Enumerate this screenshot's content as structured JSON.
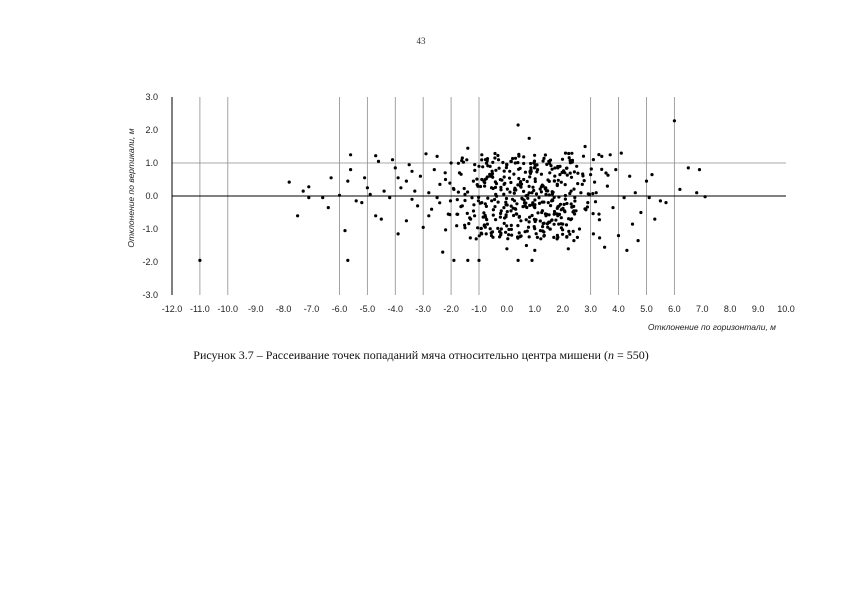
{
  "page": {
    "number": "43"
  },
  "caption": {
    "prefix": "Рисунок 3.7 – Рассеивание точек попаданий мяча относительно центра мишени (",
    "n_symbol": "n",
    "suffix": " = 550)"
  },
  "chart_data": {
    "type": "scatter",
    "xlabel": "Отклонение по горизонтали, м",
    "ylabel": "Отклонение по вертикали, м",
    "xlim": [
      -12.0,
      10.0
    ],
    "ylim": [
      -3.0,
      3.0
    ],
    "x_ticks": [
      "-12.0",
      "-11.0",
      "-10.0",
      "-9.0",
      "-8.0",
      "-7.0",
      "-6.0",
      "-5.0",
      "-4.0",
      "-3.0",
      "-2.0",
      "-1.0",
      "0.0",
      "1.0",
      "2.0",
      "3.0",
      "4.0",
      "5.0",
      "6.0",
      "7.0",
      "8.0",
      "9.0",
      "10.0"
    ],
    "y_ticks": [
      "3.0",
      "2.0",
      "1.0",
      "0.0",
      "-1.0",
      "-2.0",
      "-3.0"
    ],
    "vertical_gridlines_x": [
      -11,
      -10,
      -6,
      -5,
      -4,
      -3,
      -2,
      -1,
      3,
      4,
      5,
      6
    ],
    "horizontal_gridlines_y": [
      1.0
    ],
    "series": [
      {
        "points": [
          [
            -11.0,
            -1.95
          ],
          [
            -7.8,
            0.42
          ],
          [
            -7.5,
            -0.6
          ],
          [
            -7.3,
            0.15
          ],
          [
            -7.1,
            0.28
          ],
          [
            -7.1,
            -0.05
          ],
          [
            -6.6,
            -0.05
          ],
          [
            -6.4,
            -0.35
          ],
          [
            -6.3,
            0.55
          ],
          [
            -6.0,
            0.02
          ],
          [
            -5.8,
            -1.05
          ],
          [
            -5.7,
            -1.95
          ],
          [
            -5.6,
            1.25
          ],
          [
            -5.6,
            0.8
          ],
          [
            -5.7,
            0.45
          ],
          [
            -5.4,
            -0.15
          ],
          [
            -5.2,
            -0.2
          ],
          [
            -5.1,
            0.55
          ],
          [
            -5.0,
            0.25
          ],
          [
            -4.9,
            0.05
          ],
          [
            -4.7,
            1.22
          ],
          [
            -4.6,
            1.05
          ],
          [
            -4.7,
            -0.6
          ],
          [
            -4.5,
            -0.7
          ],
          [
            -4.4,
            0.15
          ],
          [
            -4.2,
            -0.05
          ],
          [
            -4.1,
            1.1
          ],
          [
            -4.0,
            0.85
          ],
          [
            -3.9,
            0.55
          ],
          [
            -3.9,
            -1.15
          ],
          [
            -3.8,
            0.25
          ],
          [
            -3.6,
            -0.75
          ],
          [
            -3.6,
            0.45
          ],
          [
            -3.5,
            0.95
          ],
          [
            -3.4,
            -0.1
          ],
          [
            -3.3,
            0.15
          ],
          [
            -3.2,
            -0.3
          ],
          [
            -3.1,
            0.6
          ],
          [
            -3.0,
            -0.95
          ],
          [
            -2.9,
            1.28
          ],
          [
            -2.8,
            0.1
          ],
          [
            -2.7,
            -0.4
          ],
          [
            -2.6,
            0.8
          ],
          [
            -2.5,
            -0.05
          ],
          [
            -2.4,
            0.35
          ],
          [
            -2.3,
            -1.7
          ],
          [
            -2.2,
            0.5
          ],
          [
            -2.1,
            -0.55
          ],
          [
            -2.0,
            1.0
          ],
          [
            -1.9,
            -1.95
          ],
          [
            -1.9,
            0.2
          ],
          [
            -1.8,
            -0.9
          ],
          [
            -1.7,
            0.7
          ],
          [
            -1.6,
            -0.3
          ],
          [
            -1.5,
            0.05
          ],
          [
            -1.4,
            1.45
          ],
          [
            -1.4,
            -1.95
          ],
          [
            -1.3,
            -0.7
          ],
          [
            -1.2,
            0.45
          ],
          [
            -1.1,
            -1.3
          ],
          [
            -1.0,
            -1.95
          ],
          [
            -1.0,
            0.9
          ],
          [
            -0.9,
            -0.2
          ],
          [
            -0.8,
            0.3
          ],
          [
            -0.7,
            -0.85
          ],
          [
            -0.6,
            0.6
          ],
          [
            -0.5,
            -1.25
          ],
          [
            -0.4,
            0.05
          ],
          [
            -0.3,
            1.1
          ],
          [
            -0.2,
            -0.45
          ],
          [
            -0.1,
            0.35
          ],
          [
            0.0,
            -1.6
          ],
          [
            0.1,
            0.75
          ],
          [
            0.2,
            -0.1
          ],
          [
            0.3,
            0.2
          ],
          [
            0.4,
            2.15
          ],
          [
            0.4,
            -1.95
          ],
          [
            0.5,
            -0.75
          ],
          [
            0.6,
            0.5
          ],
          [
            0.7,
            -1.5
          ],
          [
            0.8,
            1.75
          ],
          [
            0.9,
            -1.95
          ],
          [
            0.9,
            0.1
          ],
          [
            1.0,
            -0.35
          ],
          [
            1.1,
            0.8
          ],
          [
            1.2,
            -1.05
          ],
          [
            1.3,
            0.3
          ],
          [
            1.4,
            -0.6
          ],
          [
            1.5,
            1.05
          ],
          [
            1.6,
            -0.15
          ],
          [
            1.7,
            0.45
          ],
          [
            1.8,
            -1.3
          ],
          [
            1.9,
            0.65
          ],
          [
            2.0,
            -0.85
          ],
          [
            2.1,
            1.3
          ],
          [
            2.2,
            -1.6
          ],
          [
            2.3,
            0.15
          ],
          [
            2.4,
            -0.45
          ],
          [
            2.5,
            0.9
          ],
          [
            2.6,
            -1.0
          ],
          [
            2.7,
            0.35
          ],
          [
            2.8,
            1.5
          ],
          [
            2.9,
            -0.2
          ],
          [
            3.0,
            0.65
          ],
          [
            3.1,
            -1.15
          ],
          [
            3.2,
            0.1
          ],
          [
            3.3,
            -0.55
          ],
          [
            3.4,
            1.2
          ],
          [
            3.5,
            -1.55
          ],
          [
            3.6,
            0.3
          ],
          [
            3.7,
            1.25
          ],
          [
            3.8,
            -0.35
          ],
          [
            3.9,
            0.8
          ],
          [
            4.0,
            -1.2
          ],
          [
            4.1,
            1.3
          ],
          [
            4.2,
            -0.05
          ],
          [
            4.3,
            -1.65
          ],
          [
            4.4,
            0.6
          ],
          [
            4.5,
            -0.85
          ],
          [
            4.6,
            0.1
          ],
          [
            4.7,
            -1.35
          ],
          [
            4.8,
            -0.5
          ],
          [
            5.0,
            0.45
          ],
          [
            5.1,
            -0.05
          ],
          [
            5.2,
            0.65
          ],
          [
            5.3,
            -0.7
          ],
          [
            5.5,
            -0.15
          ],
          [
            5.7,
            -0.2
          ],
          [
            6.0,
            2.28
          ],
          [
            6.2,
            0.2
          ],
          [
            6.5,
            0.85
          ],
          [
            6.8,
            0.1
          ],
          [
            6.9,
            0.8
          ],
          [
            7.1,
            -0.02
          ],
          [
            -2.5,
            1.2
          ],
          [
            -2.8,
            -0.6
          ],
          [
            -3.4,
            0.75
          ],
          [
            -1.6,
            1.15
          ],
          [
            -0.9,
            1.25
          ],
          [
            0.3,
            1.0
          ],
          [
            1.4,
            0.05
          ],
          [
            2.4,
            -1.35
          ],
          [
            -0.2,
            -1.0
          ],
          [
            1.0,
            -1.65
          ]
        ]
      }
    ],
    "dense_cluster": {
      "x_range": [
        -4.0,
        4.6
      ],
      "y_range": [
        -1.3,
        1.3
      ],
      "extra_points": 400
    }
  }
}
